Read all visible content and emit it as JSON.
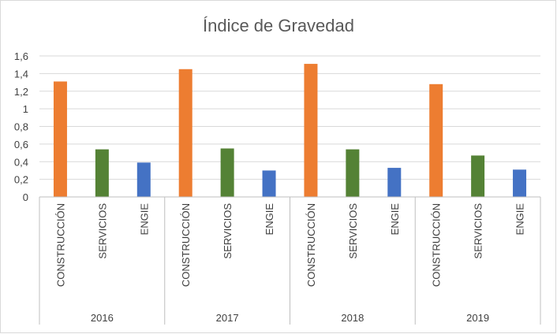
{
  "chart_data": {
    "type": "bar",
    "title": "Índice de Gravedad",
    "xlabel": "",
    "ylabel": "",
    "ylim": [
      0,
      1.6
    ],
    "yticks": [
      "0",
      "0,2",
      "0,4",
      "0,6",
      "0,8",
      "1",
      "1,2",
      "1,4",
      "1,6"
    ],
    "grid": true,
    "legend": "none",
    "groups": [
      {
        "label": "2016",
        "bars": [
          {
            "category": "CONSTRUCCIÓN",
            "value": 1.31,
            "color": "#ed7d31"
          },
          {
            "category": "SERVICIOS",
            "value": 0.54,
            "color": "#548235"
          },
          {
            "category": "ENGIE",
            "value": 0.39,
            "color": "#4472c4"
          }
        ]
      },
      {
        "label": "2017",
        "bars": [
          {
            "category": "CONSTRUCCIÓN",
            "value": 1.45,
            "color": "#ed7d31"
          },
          {
            "category": "SERVICIOS",
            "value": 0.55,
            "color": "#548235"
          },
          {
            "category": "ENGIE",
            "value": 0.3,
            "color": "#4472c4"
          }
        ]
      },
      {
        "label": "2018",
        "bars": [
          {
            "category": "CONSTRUCCIÓN",
            "value": 1.51,
            "color": "#ed7d31"
          },
          {
            "category": "SERVICIOS",
            "value": 0.54,
            "color": "#548235"
          },
          {
            "category": "ENGIE",
            "value": 0.33,
            "color": "#4472c4"
          }
        ]
      },
      {
        "label": "2019",
        "bars": [
          {
            "category": "CONSTRUCCIÓN",
            "value": 1.28,
            "color": "#ed7d31"
          },
          {
            "category": "SERVICIOS",
            "value": 0.47,
            "color": "#548235"
          },
          {
            "category": "ENGIE",
            "value": 0.31,
            "color": "#4472c4"
          }
        ]
      }
    ]
  }
}
